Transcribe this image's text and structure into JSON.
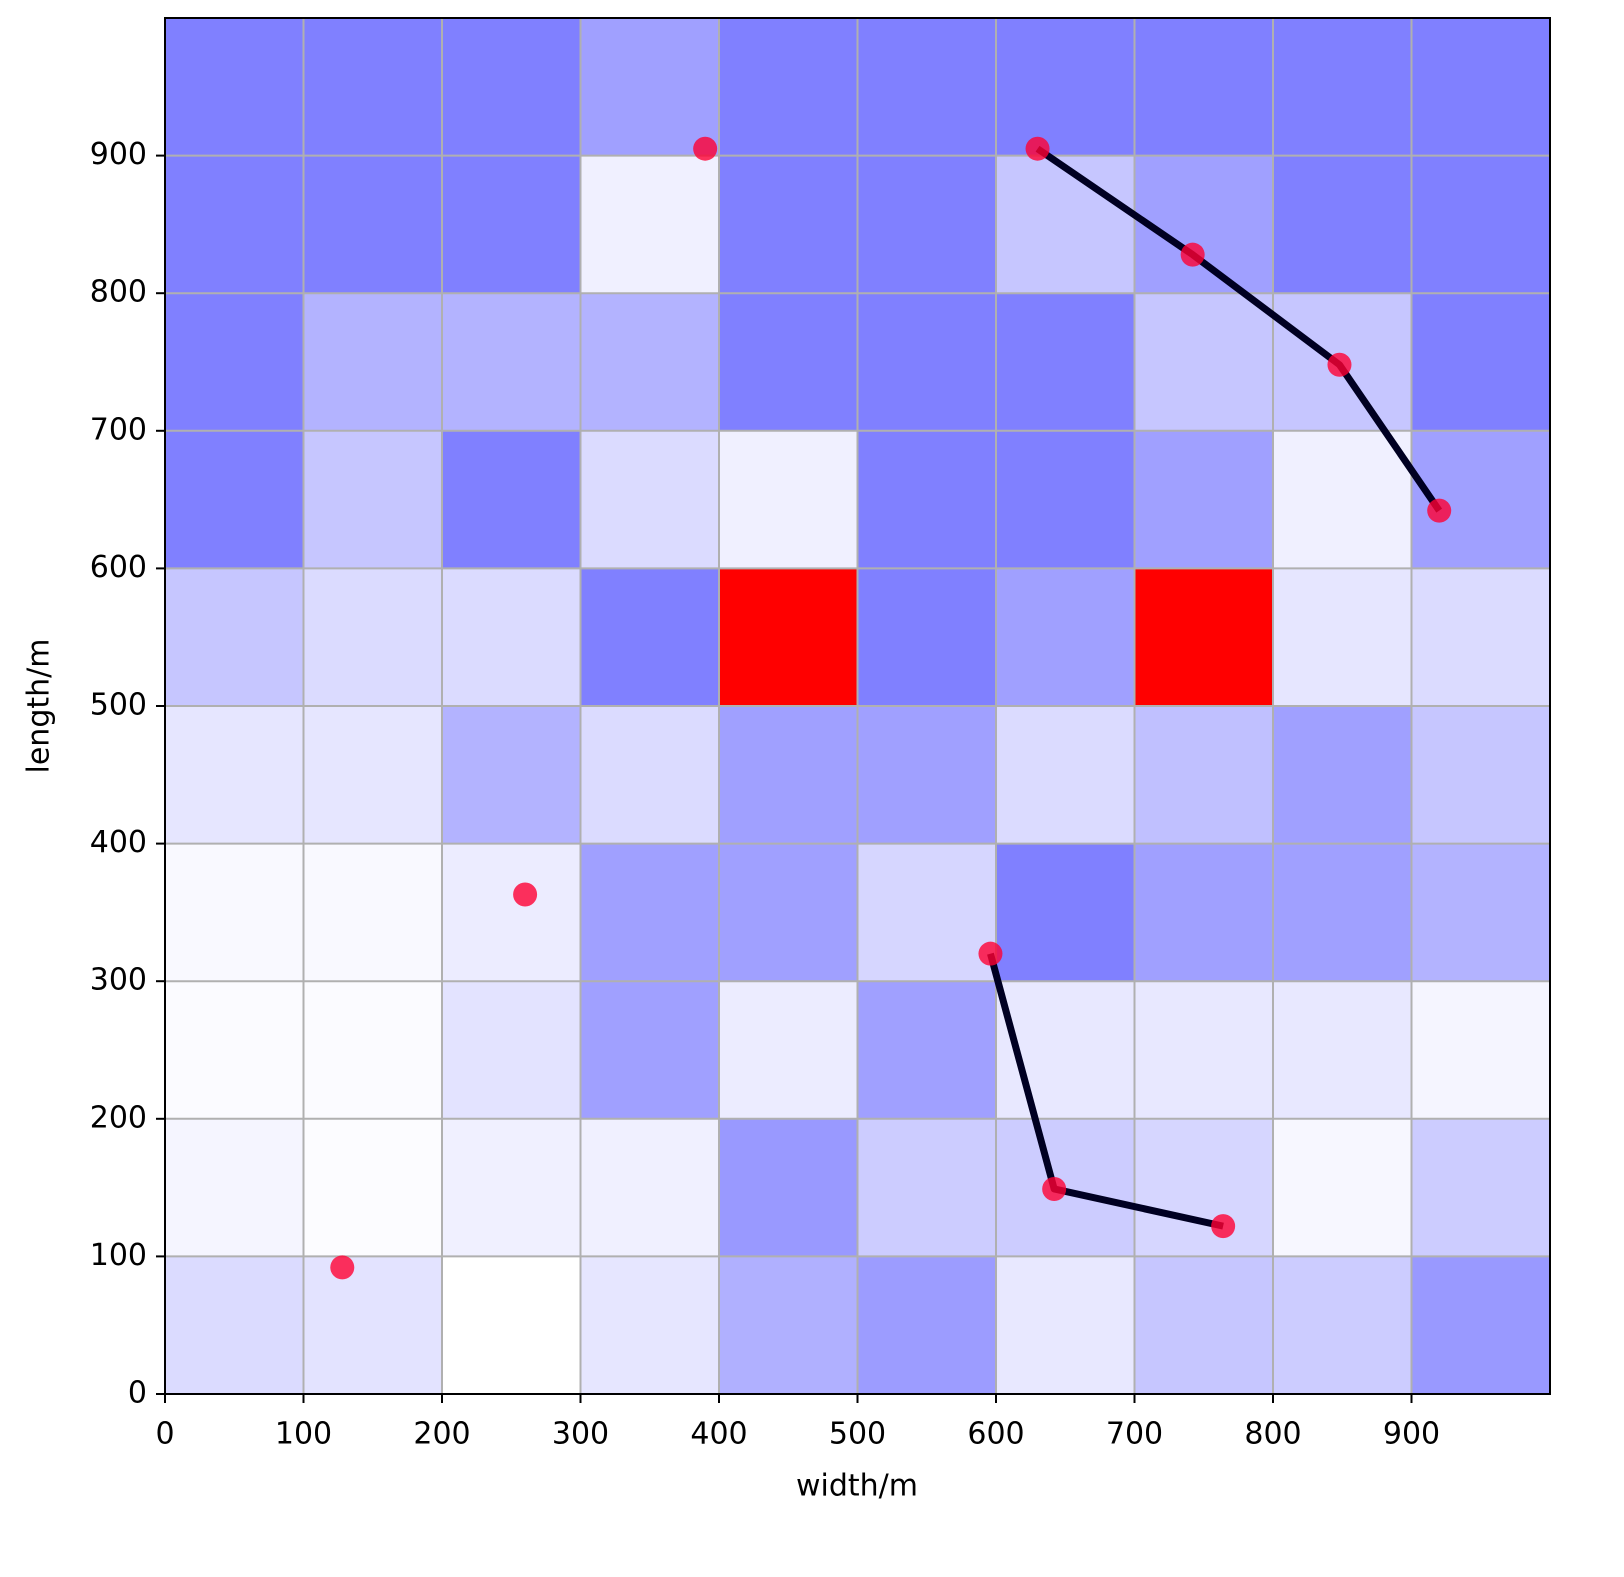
{
  "chart_data": {
    "type": "heatmap",
    "xlabel": "width/m",
    "ylabel": "length/m",
    "xlim": [
      0,
      1000
    ],
    "ylim": [
      0,
      1000
    ],
    "xticks": [
      0,
      100,
      200,
      300,
      400,
      500,
      600,
      700,
      800,
      900
    ],
    "yticks": [
      0,
      100,
      200,
      300,
      400,
      500,
      600,
      700,
      800,
      900
    ],
    "grid": true,
    "color": "#8080ff",
    "null_color": "#ff0000",
    "z": [
      [
        0.28,
        0.22,
        0,
        0.2,
        0.62,
        0.78,
        0.18,
        0.45,
        0.4,
        0.8
      ],
      [
        0.08,
        0.02,
        0.12,
        0.12,
        0.8,
        0.4,
        0.4,
        0.32,
        0.06,
        0.4
      ],
      [
        0.03,
        0.03,
        0.22,
        0.75,
        0.15,
        0.75,
        0.18,
        0.18,
        0.18,
        0.08
      ],
      [
        0.05,
        0.05,
        0.15,
        0.75,
        0.75,
        0.32,
        1,
        0.75,
        0.75,
        0.6
      ],
      [
        0.2,
        0.2,
        0.6,
        0.28,
        0.75,
        0.75,
        0.28,
        0.5,
        0.75,
        0.45
      ],
      [
        0.45,
        0.28,
        0.28,
        1,
        null,
        1,
        0.75,
        null,
        0.2,
        0.28
      ],
      [
        1,
        0.45,
        1,
        0.28,
        0.12,
        1,
        1,
        0.75,
        0.12,
        0.75
      ],
      [
        1,
        0.6,
        0.6,
        0.6,
        1,
        1,
        1,
        0.45,
        0.45,
        1
      ],
      [
        1,
        1,
        1,
        0.12,
        1,
        1,
        0.45,
        0.75,
        1,
        1
      ],
      [
        1,
        1,
        1,
        0.75,
        1,
        1,
        1,
        1,
        1,
        1
      ]
    ],
    "series": [
      {
        "x": [
          630,
          742,
          848,
          920
        ],
        "y": [
          905,
          828,
          748,
          642
        ],
        "line": true,
        "line_color": "#000022",
        "marker_color": "#ff0033"
      },
      {
        "x": [
          596,
          642,
          764
        ],
        "y": [
          320,
          149,
          122
        ],
        "line": true,
        "line_color": "#000022",
        "marker_color": "#ff0033"
      },
      {
        "x": [
          390,
          260,
          128
        ],
        "y": [
          905,
          363,
          92
        ],
        "line": false,
        "marker_color": "#ff0033"
      }
    ],
    "marker_alpha": 0.8
  }
}
